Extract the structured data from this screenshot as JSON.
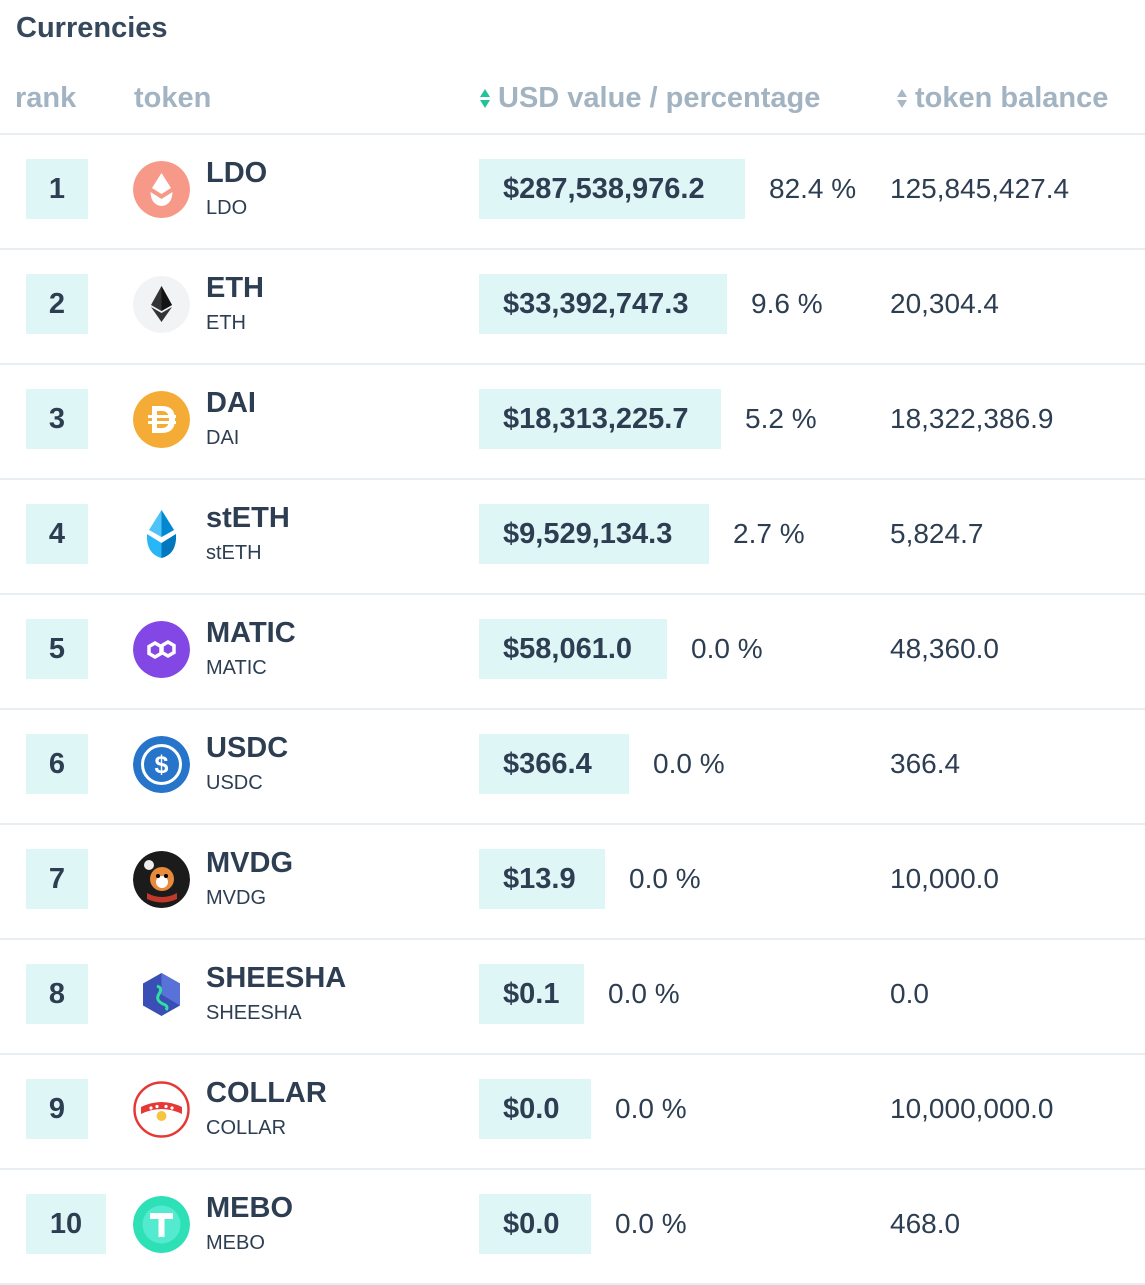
{
  "title": "Currencies",
  "header": {
    "rank": "rank",
    "token": "token",
    "usd": "USD value / percentage",
    "balance": "token balance"
  },
  "rows": [
    {
      "rank": "1",
      "name": "LDO",
      "symbol": "LDO",
      "usd": "$287,538,976.2",
      "pct": "82.4 %",
      "balance": "125,845,427.4",
      "icon": "ldo-icon",
      "color": "#f69988"
    },
    {
      "rank": "2",
      "name": "ETH",
      "symbol": "ETH",
      "usd": "$33,392,747.3",
      "pct": "9.6 %",
      "balance": "20,304.4",
      "icon": "eth-icon",
      "color": "#f2f3f5"
    },
    {
      "rank": "3",
      "name": "DAI",
      "symbol": "DAI",
      "usd": "$18,313,225.7",
      "pct": "5.2 %",
      "balance": "18,322,386.9",
      "icon": "dai-icon",
      "color": "#f5ac37"
    },
    {
      "rank": "4",
      "name": "stETH",
      "symbol": "stETH",
      "usd": "$9,529,134.3",
      "pct": "2.7 %",
      "balance": "5,824.7",
      "icon": "steth-icon",
      "color": "#00a3ff"
    },
    {
      "rank": "5",
      "name": "MATIC",
      "symbol": "MATIC",
      "usd": "$58,061.0",
      "pct": "0.0 %",
      "balance": "48,360.0",
      "icon": "matic-icon",
      "color": "#8247e5"
    },
    {
      "rank": "6",
      "name": "USDC",
      "symbol": "USDC",
      "usd": "$366.4",
      "pct": "0.0 %",
      "balance": "366.4",
      "icon": "usdc-icon",
      "color": "#2775ca"
    },
    {
      "rank": "7",
      "name": "MVDG",
      "symbol": "MVDG",
      "usd": "$13.9",
      "pct": "0.0 %",
      "balance": "10,000.0",
      "icon": "mvdg-icon",
      "color": "#1b1b1b"
    },
    {
      "rank": "8",
      "name": "SHEESHA",
      "symbol": "SHEESHA",
      "usd": "$0.1",
      "pct": "0.0 %",
      "balance": "0.0",
      "icon": "sheesha-icon",
      "color": "#3a4fb5"
    },
    {
      "rank": "9",
      "name": "COLLAR",
      "symbol": "COLLAR",
      "usd": "$0.0",
      "pct": "0.0 %",
      "balance": "10,000,000.0",
      "icon": "collar-icon",
      "color": "#e53935"
    },
    {
      "rank": "10",
      "name": "MEBO",
      "symbol": "MEBO",
      "usd": "$0.0",
      "pct": "0.0 %",
      "balance": "468.0",
      "icon": "mebo-icon",
      "color": "#2ee0b5"
    }
  ]
}
